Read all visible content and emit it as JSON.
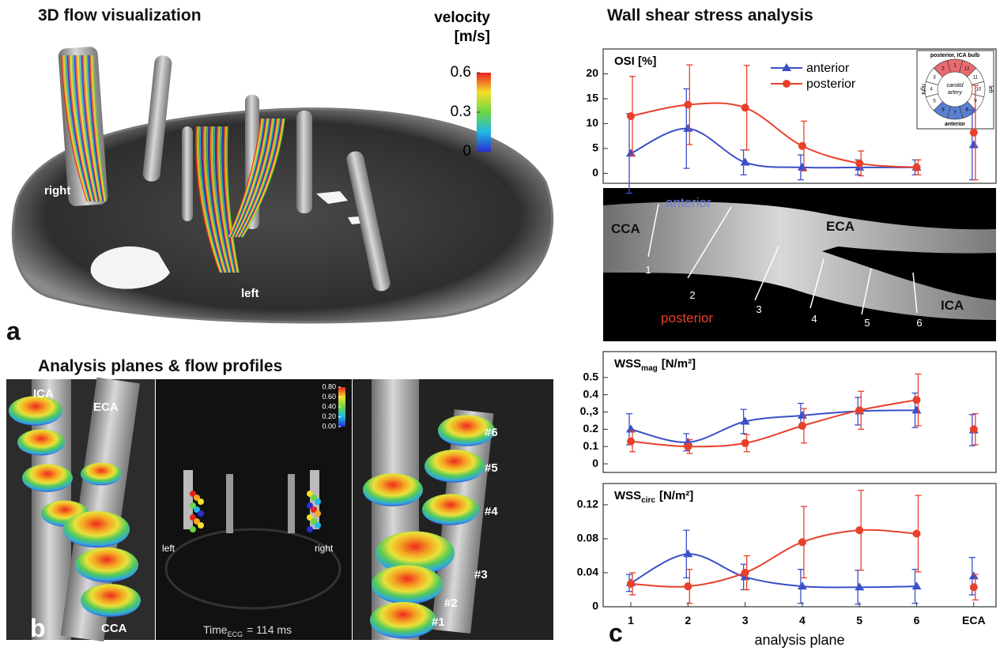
{
  "panel_a": {
    "label": "a",
    "title": "3D flow visualization",
    "colorbar": {
      "title": [
        "velocity",
        "[m/s]"
      ],
      "lim": [
        0,
        0.6
      ],
      "ticks": [
        0.6,
        0.3,
        0
      ]
    },
    "annotations": [
      "right",
      "left"
    ]
  },
  "panel_b": {
    "label": "b",
    "title": "Analysis planes & flow profiles",
    "left_labels": [
      "ICA",
      "ECA",
      "CCA"
    ],
    "middle": {
      "labels": [
        "left",
        "right"
      ],
      "time": {
        "text": "Time",
        "sub": "ECG",
        "rest": "= 114 ms"
      },
      "colorbar": {
        "lim": [
          0,
          0.8
        ],
        "ticks": [
          {
            "value": 0.8,
            "label": "0.80"
          },
          {
            "value": 0.6,
            "label": "0.60"
          },
          {
            "value": 0.4,
            "label": "0.40"
          },
          {
            "value": 0.2,
            "label": "0.20"
          },
          {
            "value": 0,
            "label": "0.00"
          }
        ]
      }
    },
    "right_labels": [
      "#6",
      "#5",
      "#4",
      "#3",
      "#2",
      "#1"
    ]
  },
  "panel_c": {
    "label": "c",
    "title": "Wall shear stress analysis",
    "vessel": {
      "labels": [
        "CCA",
        "ECA",
        "ICA"
      ],
      "anterior": "anterior",
      "posterior": "posterior",
      "planes": [
        "1",
        "2",
        "3",
        "4",
        "5",
        "6"
      ]
    },
    "inset": {
      "top": "posterior, ICA bulb",
      "bottom": "anterior",
      "side_left": "right",
      "side_right": "left",
      "center": [
        "carotid",
        "artery"
      ],
      "segments": [
        "1",
        "12",
        "11",
        "10",
        "9",
        "8",
        "7",
        "6",
        "5",
        "4",
        "3",
        "2"
      ]
    }
  },
  "chart_data": [
    {
      "type": "line",
      "ylabel": {
        "main": "OSI [%]"
      },
      "ylim": [
        -2,
        25
      ],
      "yticks": [
        0,
        5,
        10,
        15,
        20
      ],
      "legend": true,
      "connect_last": false,
      "series": [
        {
          "name": "anterior",
          "color": "#3a4fc8",
          "marker": "triangle",
          "values": [
            4,
            9,
            2.2,
            1.2,
            1.2,
            1.2,
            5.7
          ],
          "errors": [
            8,
            8,
            2.5,
            2.5,
            1.5,
            1.5,
            7
          ]
        },
        {
          "name": "posterior",
          "color": "#e8402a",
          "marker": "circle",
          "values": [
            11.5,
            13.8,
            13.2,
            5.5,
            2,
            1.2,
            8.2
          ],
          "errors": [
            8,
            8,
            8.5,
            5,
            2.5,
            1.5,
            9.5
          ]
        }
      ]
    },
    {
      "type": "line",
      "ylabel": {
        "main": "WSS",
        "sub": "mag",
        "unit": "[N/m²]"
      },
      "ylim": [
        -0.05,
        0.65
      ],
      "yticks": [
        0,
        0.1,
        0.2,
        {
          "value": 0.3,
          "label": "0.,3"
        },
        0.4,
        0.5
      ],
      "legend": false,
      "connect_last": false,
      "series": [
        {
          "color": "#3a4fc8",
          "marker": "triangle",
          "values": [
            0.2,
            0.125,
            0.245,
            0.28,
            0.305,
            0.31,
            0.195
          ],
          "errors": [
            0.09,
            0.05,
            0.07,
            0.07,
            0.08,
            0.1,
            0.09
          ]
        },
        {
          "color": "#e8402a",
          "marker": "circle",
          "values": [
            0.13,
            0.1,
            0.12,
            0.22,
            0.31,
            0.37,
            0.2
          ],
          "errors": [
            0.06,
            0.04,
            0.05,
            0.1,
            0.11,
            0.15,
            0.09
          ]
        }
      ]
    },
    {
      "type": "line",
      "ylabel": {
        "main": "WSS",
        "sub": "circ",
        "unit": "[N/m²]"
      },
      "ylim": [
        0,
        0.145
      ],
      "yticks": [
        0,
        0.04,
        0.08,
        0.12
      ],
      "legend": false,
      "connect_last": false,
      "xlabel": "analysis plane",
      "categories": [
        "1",
        "2",
        "3",
        "4",
        "5",
        "6",
        "ECA"
      ],
      "series": [
        {
          "color": "#3a4fc8",
          "marker": "triangle",
          "values": [
            0.028,
            0.062,
            0.035,
            0.024,
            0.023,
            0.024,
            0.036
          ],
          "errors": [
            0.01,
            0.028,
            0.015,
            0.02,
            0.02,
            0.02,
            0.022
          ]
        },
        {
          "color": "#e8402a",
          "marker": "circle",
          "values": [
            0.027,
            0.024,
            0.04,
            0.076,
            0.09,
            0.086,
            0.023
          ],
          "errors": [
            0.013,
            0.02,
            0.02,
            0.042,
            0.047,
            0.045,
            0.015
          ]
        }
      ]
    }
  ]
}
